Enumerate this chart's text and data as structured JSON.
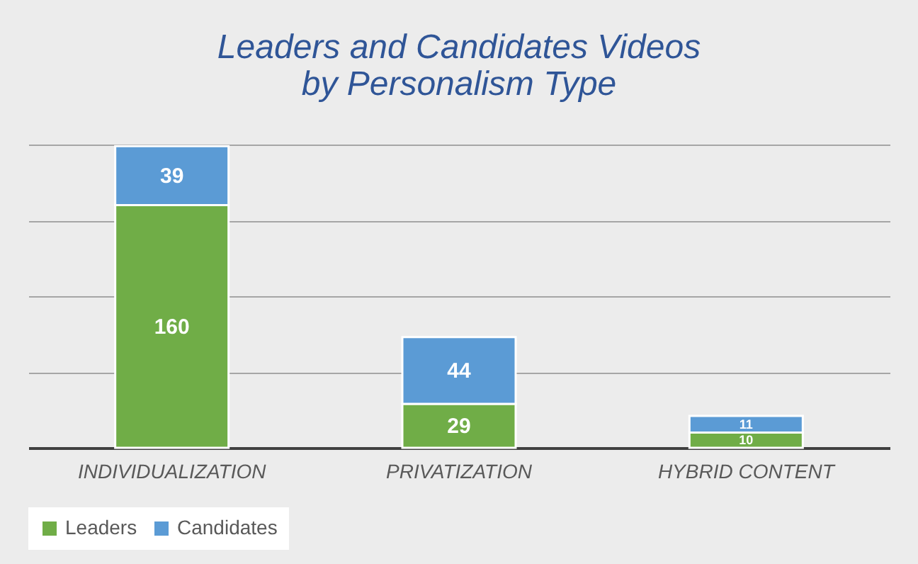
{
  "chart_data": {
    "type": "bar",
    "title": "Leaders and Candidates Videos by Personalism Type",
    "categories": [
      "INDIVIDUALIZATION",
      "PRIVATIZATION",
      "HYBRID CONTENT"
    ],
    "series": [
      {
        "name": "Leaders",
        "color": "#70ad47",
        "values": [
          160,
          29,
          10
        ]
      },
      {
        "name": "Candidates",
        "color": "#5b9bd5",
        "values": [
          39,
          44,
          11
        ]
      }
    ],
    "stacked": true,
    "data_labels": true,
    "ylim": [
      0,
      200
    ],
    "yticks": [
      {
        "value": 0,
        "label": null
      },
      {
        "value": 50,
        "label": null
      },
      {
        "value": 100,
        "label": null
      },
      {
        "value": 150,
        "label": null
      },
      {
        "value": 200,
        "label": null
      }
    ],
    "grid": "y",
    "legend": "bottom",
    "tick_labels": "x"
  }
}
